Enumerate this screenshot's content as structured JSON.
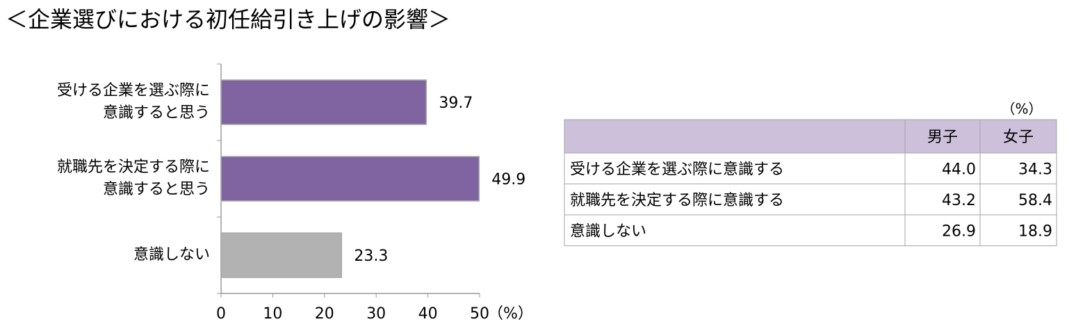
{
  "title": "＜企業選びにおける初任給引き上げの影響＞",
  "chart_data": {
    "type": "hbar",
    "categories": [
      [
        "受ける企業を選ぶ際に",
        "意識すると思う"
      ],
      [
        "就職先を決定する際に",
        "意識すると思う"
      ],
      [
        "意識しない"
      ]
    ],
    "values": [
      39.7,
      49.9,
      23.3
    ],
    "colors": [
      "#8064a2",
      "#8064a2",
      "#b2b2b2"
    ],
    "xlim": [
      0,
      50
    ],
    "xticks": [
      0,
      10,
      20,
      30,
      40,
      50
    ],
    "x_unit": "（%）"
  },
  "table": {
    "unit": "（%）",
    "columns": [
      "男子",
      "女子"
    ],
    "rows": [
      {
        "label": "受ける企業を選ぶ際に意識する",
        "values": [
          "44.0",
          "34.3"
        ]
      },
      {
        "label": "就職先を決定する際に意識する",
        "values": [
          "43.2",
          "58.4"
        ]
      },
      {
        "label": "意識しない",
        "values": [
          "26.9",
          "18.9"
        ]
      }
    ]
  }
}
